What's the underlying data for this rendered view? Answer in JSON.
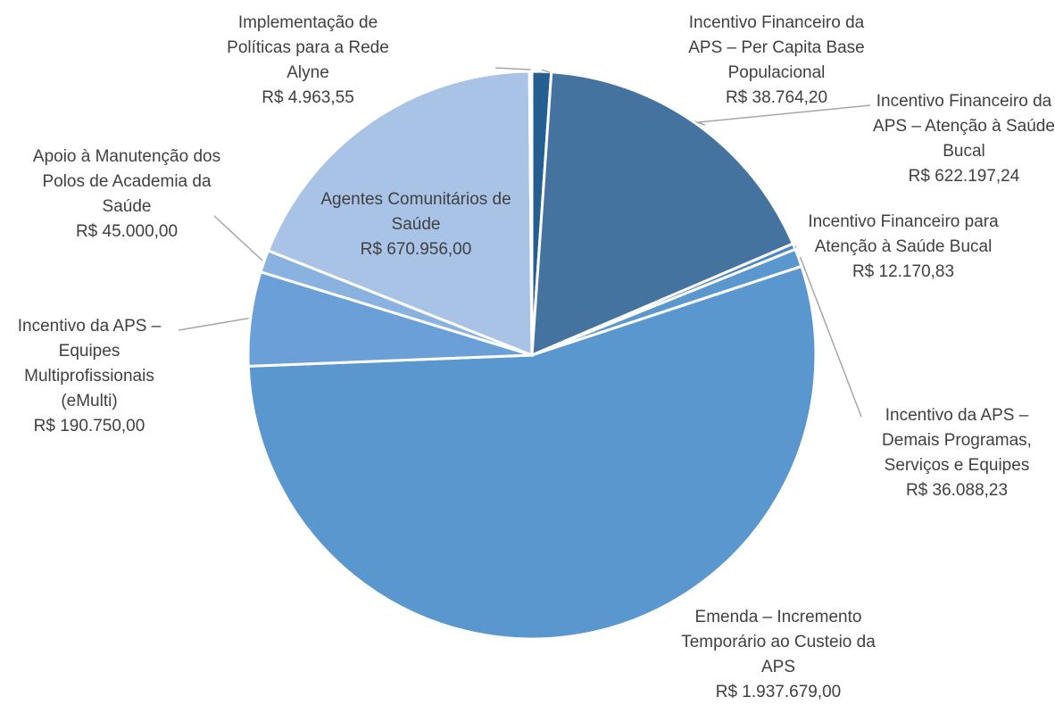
{
  "chart_data": {
    "type": "pie",
    "categories": [
      "Incentivo Financeiro da APS – Per Capita Base Populacional",
      "Incentivo Financeiro da APS – Atenção à Saúde Bucal",
      "Incentivo Financeiro para Atenção à Saúde Bucal",
      "Incentivo da APS – Demais Programas, Serviços e Equipes",
      "Emenda – Incremento Temporário ao Custeio da APS",
      "Incentivo da APS – Equipes Multiprofissionais (eMulti)",
      "Apoio à Manutenção dos Polos de Academia da Saúde",
      "Agentes Comunitários de Saúde",
      "Implementação de Políticas para a Rede Alyne"
    ],
    "values": [
      38764.2,
      622197.24,
      12170.83,
      36088.23,
      1937679.0,
      190750.0,
      45000.0,
      670956.0,
      4963.55
    ],
    "value_labels": [
      "R$ 38.764,20",
      "R$ 622.197,24",
      "R$ 12.170,83",
      "R$ 36.088,23",
      "R$ 1.937.679,00",
      "R$ 190.750,00",
      "R$ 45.000,00",
      "R$ 670.956,00",
      "R$ 4.963,55"
    ],
    "colors": [
      "#255e91",
      "#44739f",
      "#4a86c0",
      "#5b97cf",
      "#5b97cf",
      "#6a9fd8",
      "#8ab2e0",
      "#a8c3e6",
      "#2a5c8a"
    ]
  }
}
